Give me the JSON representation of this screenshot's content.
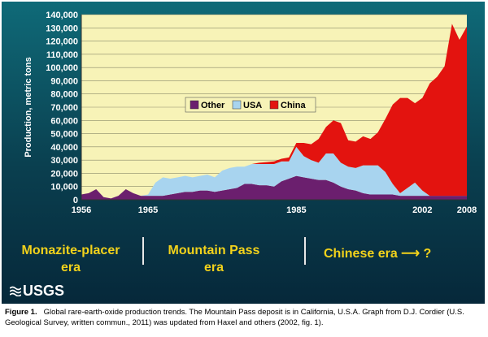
{
  "chart_data": {
    "type": "area",
    "stacked": true,
    "title": "",
    "xlabel": "",
    "ylabel": "Production, metric tons",
    "xlim": [
      1956,
      2008
    ],
    "ylim": [
      0,
      140000
    ],
    "y_ticks": [
      "0",
      "10,000",
      "20,000",
      "30,000",
      "40,000",
      "50,000",
      "60,000",
      "70,000",
      "80,000",
      "90,000",
      "100,000",
      "110,000",
      "120,000",
      "130,000",
      "140,000"
    ],
    "x_tick_labels": [
      {
        "x": 1956,
        "label": "1956"
      },
      {
        "x": 1965,
        "label": "1965"
      },
      {
        "x": 1985,
        "label": "1985"
      },
      {
        "x": 2002,
        "label": "2002"
      },
      {
        "x": 2008,
        "label": "2008"
      }
    ],
    "grid": true,
    "legend_position": "center",
    "x": [
      1956,
      1957,
      1958,
      1959,
      1960,
      1961,
      1962,
      1963,
      1964,
      1965,
      1966,
      1967,
      1968,
      1969,
      1970,
      1971,
      1972,
      1973,
      1974,
      1975,
      1976,
      1977,
      1978,
      1979,
      1980,
      1981,
      1982,
      1983,
      1984,
      1985,
      1986,
      1987,
      1988,
      1989,
      1990,
      1991,
      1992,
      1993,
      1994,
      1995,
      1996,
      1997,
      1998,
      1999,
      2000,
      2001,
      2002,
      2003,
      2004,
      2005,
      2006,
      2007,
      2008
    ],
    "series": [
      {
        "name": "Other",
        "color": "#6b1f6e",
        "values": [
          4000,
          5000,
          8000,
          2000,
          1000,
          3000,
          8000,
          5000,
          3000,
          3000,
          3000,
          3000,
          4000,
          5000,
          6000,
          6000,
          7000,
          7000,
          6000,
          7000,
          8000,
          9000,
          12000,
          12000,
          11000,
          11000,
          10000,
          14000,
          16000,
          18000,
          17000,
          16000,
          15000,
          15000,
          13000,
          10000,
          8000,
          7000,
          5000,
          4000,
          4000,
          4000,
          4000,
          3000,
          3000,
          3000,
          3000,
          3000,
          3000,
          3000,
          3000,
          3000,
          3000
        ]
      },
      {
        "name": "USA",
        "color": "#a8d4ef",
        "values": [
          0,
          0,
          0,
          0,
          0,
          0,
          0,
          0,
          0,
          1000,
          10000,
          14000,
          12000,
          12000,
          12000,
          11000,
          11000,
          12000,
          11000,
          15000,
          16000,
          16000,
          13000,
          15000,
          16000,
          16000,
          17000,
          15000,
          13000,
          22000,
          16000,
          14000,
          13000,
          20000,
          22000,
          18000,
          17000,
          17000,
          21000,
          22000,
          22000,
          17000,
          8000,
          2000,
          6000,
          10000,
          4000,
          0,
          0,
          0,
          0,
          0,
          0
        ]
      },
      {
        "name": "China",
        "color": "#e3130f",
        "values": [
          0,
          0,
          0,
          0,
          0,
          0,
          0,
          0,
          0,
          0,
          0,
          0,
          0,
          0,
          0,
          0,
          0,
          0,
          0,
          0,
          0,
          0,
          0,
          0,
          1000,
          1500,
          2000,
          2000,
          3000,
          3000,
          10000,
          12000,
          18000,
          20000,
          25000,
          30000,
          20000,
          20000,
          22000,
          20000,
          25000,
          40000,
          60000,
          72000,
          68000,
          60000,
          70000,
          85000,
          90000,
          98000,
          130000,
          118000,
          128000
        ]
      }
    ]
  },
  "eras": [
    {
      "label": "Monazite-placer era"
    },
    {
      "label": "Mountain Pass era"
    },
    {
      "label": "Chinese era ⟶ ?"
    }
  ],
  "logo": {
    "text": "USGS"
  },
  "caption": {
    "figure_label": "Figure 1.",
    "text": "Global rare-earth-oxide production trends. The Mountain Pass deposit is in California, U.S.A. Graph from D.J. Cordier (U.S. Geological Survey, written commun., 2011) was updated from Haxel and others (2002, fig. 1)."
  },
  "colors": {
    "plot_background": "#f7f3b7",
    "era_text": "#f2d21b",
    "panel": "#0a3f4f"
  }
}
